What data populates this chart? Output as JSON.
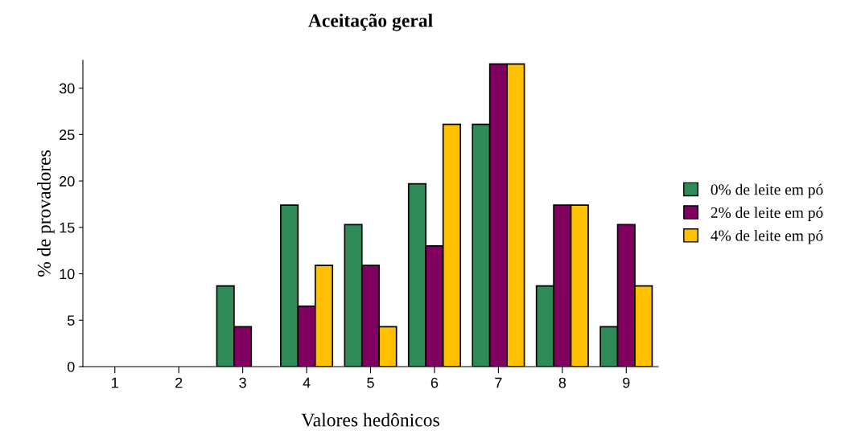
{
  "chart_data": {
    "type": "bar",
    "title": "Aceitação geral",
    "xlabel": "Valores hedônicos",
    "ylabel": "% de provadores",
    "categories": [
      "1",
      "2",
      "3",
      "4",
      "5",
      "6",
      "7",
      "8",
      "9"
    ],
    "series": [
      {
        "name": "0% de leite em pó",
        "color": "#2e8b57",
        "values": [
          0,
          0,
          8.7,
          17.4,
          15.3,
          19.7,
          26.1,
          8.7,
          4.3
        ]
      },
      {
        "name": "2% de leite em pó",
        "color": "#800060",
        "values": [
          0,
          0,
          4.3,
          6.5,
          10.9,
          13.0,
          32.6,
          17.4,
          15.3
        ]
      },
      {
        "name": "4% de leite em pó",
        "color": "#ffc000",
        "values": [
          0,
          0,
          0,
          10.9,
          4.3,
          26.1,
          32.6,
          17.4,
          8.7
        ]
      }
    ],
    "ylim": [
      0,
      33
    ],
    "yticks": [
      0,
      5,
      10,
      15,
      20,
      25,
      30
    ],
    "grid": false,
    "legend": "right"
  }
}
